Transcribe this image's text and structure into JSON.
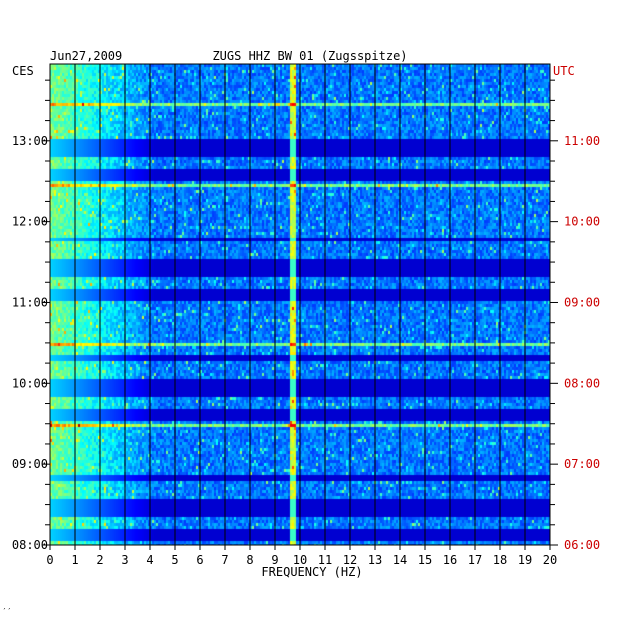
{
  "header": {
    "date": "Jun27,2009",
    "title": "ZUGS HHZ BW 01 (Zugsspitze)",
    "left_tz": "CES",
    "right_tz": "UTC"
  },
  "footer_mark": "′′",
  "colors": {
    "label_black": "#000000",
    "label_red": "#cc0000",
    "background_blue": "#00007a"
  },
  "chart_data": {
    "type": "heatmap",
    "title": "ZUGS HHZ BW 01 (Zugsspitze)",
    "xlabel": "FREQUENCY (HZ)",
    "xlim": [
      0,
      20
    ],
    "x_ticks": [
      "0",
      "1",
      "2",
      "3",
      "4",
      "5",
      "6",
      "7",
      "8",
      "9",
      "10",
      "11",
      "12",
      "13",
      "14",
      "15",
      "16",
      "17",
      "18",
      "19",
      "20"
    ],
    "y_ticks_left": [
      "08:00",
      "09:00",
      "10:00",
      "11:00",
      "12:00",
      "13:00"
    ],
    "y_ticks_right": [
      "06:00",
      "07:00",
      "08:00",
      "09:00",
      "10:00",
      "11:00"
    ],
    "ylim_hours_cest": [
      8.0,
      13.95
    ],
    "grid": true,
    "colormap": "jet"
  }
}
